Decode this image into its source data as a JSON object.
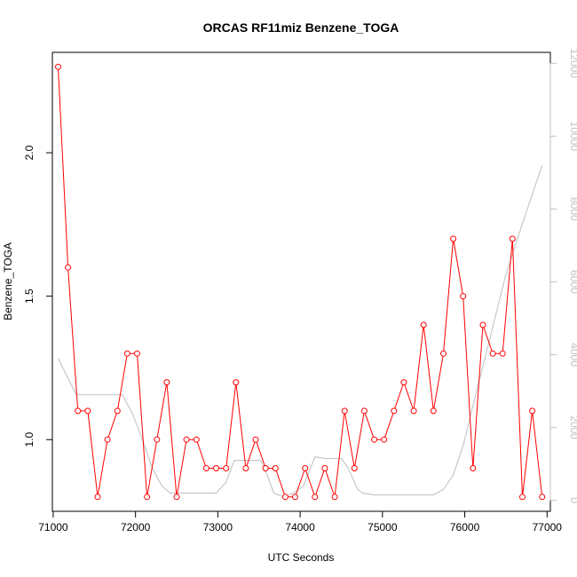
{
  "chart_data": {
    "type": "line",
    "title": "ORCAS RF11miz Benzene_TOGA",
    "xlabel": "UTC Seconds",
    "ylabel": "Benzene_TOGA",
    "xlim": [
      70990,
      77040
    ],
    "ylim": [
      0.75,
      2.35
    ],
    "y2lim": [
      -300,
      12300
    ],
    "x_ticks": [
      71000,
      72000,
      73000,
      74000,
      75000,
      76000,
      77000
    ],
    "y_ticks": [
      1.0,
      1.5,
      2.0
    ],
    "y_tick_labels": [
      "1.0",
      "1.5",
      "2.0"
    ],
    "y2_ticks": [
      0,
      2000,
      4000,
      6000,
      8000,
      10000,
      12000
    ],
    "grid": false,
    "colors": {
      "series": "#ff0000",
      "secondary": "#c8c8c8",
      "axis": "#000000",
      "right_axis": "#c0c0c0"
    },
    "series": [
      {
        "x": [
          71060,
          71180,
          71300,
          71420,
          71540,
          71660,
          71780,
          71900,
          72020,
          72140,
          72260,
          72380,
          72500,
          72620,
          72740,
          72860,
          72980,
          73100,
          73220,
          73340,
          73460,
          73580,
          73700,
          73820,
          73940,
          74060,
          74180,
          74300,
          74420,
          74540,
          74660,
          74780,
          74900,
          75020,
          75140,
          75260,
          75380,
          75500,
          75620,
          75740,
          75860,
          75980,
          76100,
          76220,
          76340,
          76460,
          76580,
          76700,
          76820,
          76940
        ],
        "y": [
          2.3,
          1.6,
          1.1,
          1.1,
          0.8,
          1.0,
          1.1,
          1.3,
          1.3,
          0.8,
          1.0,
          1.2,
          0.8,
          1.0,
          1.0,
          0.9,
          0.9,
          0.9,
          1.2,
          0.9,
          1.0,
          0.9,
          0.9,
          0.8,
          0.8,
          0.9,
          0.8,
          0.9,
          0.8,
          1.1,
          0.9,
          1.1,
          1.0,
          1.0,
          1.1,
          1.2,
          1.1,
          1.4,
          1.1,
          1.3,
          1.7,
          1.5,
          0.9,
          1.4,
          1.3,
          1.3,
          1.7,
          0.8,
          1.1,
          0.8
        ]
      },
      {
        "axis": "right",
        "x": [
          71060,
          71280,
          71480,
          71660,
          71840,
          71960,
          72080,
          72200,
          72320,
          72420,
          72600,
          72800,
          72980,
          73100,
          73200,
          73400,
          73520,
          73600,
          73680,
          73800,
          73920,
          74040,
          74180,
          74300,
          74500,
          74580,
          74700,
          74760,
          74900,
          75100,
          75500,
          75620,
          75740,
          75860,
          75980,
          76100,
          76300,
          76500,
          76700,
          76940
        ],
        "y": [
          3900,
          2900,
          2900,
          2900,
          2900,
          2400,
          1700,
          900,
          400,
          200,
          200,
          200,
          200,
          500,
          1100,
          1100,
          1100,
          700,
          200,
          100,
          200,
          400,
          1200,
          1150,
          1150,
          900,
          300,
          200,
          150,
          150,
          150,
          150,
          300,
          700,
          1500,
          2600,
          4400,
          6200,
          7600,
          9200
        ]
      }
    ]
  }
}
